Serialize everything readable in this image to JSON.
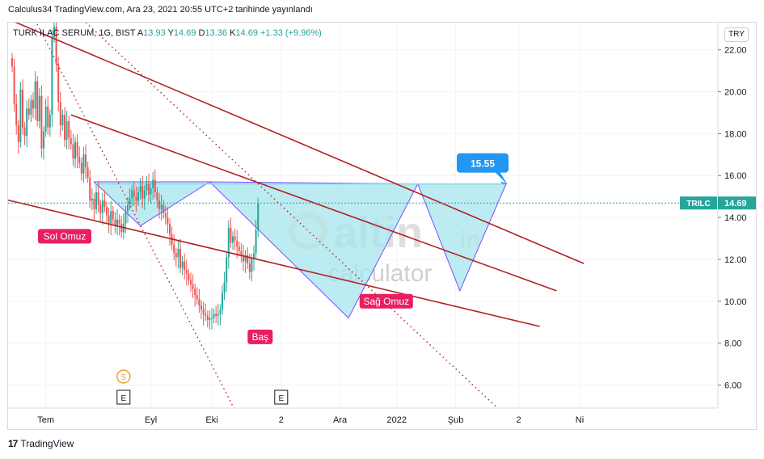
{
  "header": {
    "published": "Calculus34 TradingView.com, Ara 23, 2021 20:55 UTC+2 tarihinde yayınlandı"
  },
  "legend": {
    "name": "TURK ILAC SERUM, 1G, BIST",
    "open_label": "A",
    "open": "13.93",
    "high_label": "Y",
    "high": "14.69",
    "low_label": "D",
    "low": "13.36",
    "close_label": "K",
    "close": "14.69",
    "change": "+1.33 (+9.96%)"
  },
  "currency": "TRY",
  "footer": {
    "brand": "TradingView"
  },
  "watermark": {
    "word1": "altin",
    "word2": "in",
    "word3": "calculator"
  },
  "colors": {
    "up": "#26a69a",
    "down": "#ef5350",
    "trend": "#b22222",
    "pattern_fill": "#a6e4ee",
    "label": "#e91e63",
    "target": "#2196f3"
  },
  "chart_data": {
    "type": "candlestick",
    "y_ticks": [
      "22.00",
      "20.00",
      "18.00",
      "16.00",
      "14.00",
      "12.00",
      "10.00",
      "8.00",
      "6.00"
    ],
    "y_tick_values": [
      22,
      20,
      18,
      16,
      14,
      12,
      10,
      8,
      6
    ],
    "ylim": [
      4.9,
      23.3
    ],
    "x_ticks": [
      "Tem",
      "Eyl",
      "Eki",
      "2",
      "Ara",
      "2022",
      "Şub",
      "2",
      "Ni"
    ],
    "x_tick_values": [
      16,
      66,
      95,
      128,
      156,
      183,
      211,
      241,
      270
    ],
    "last_price_label": "TRILC",
    "last_price": "14.69",
    "target_label": "15.55",
    "pattern_labels": [
      {
        "text": "Sol Omuz",
        "x": 25,
        "y": 13.1
      },
      {
        "text": "Baş",
        "x": 118,
        "y": 8.3
      },
      {
        "text": "Sağ Omuz",
        "x": 178,
        "y": 10.0
      }
    ],
    "event_markers": [
      {
        "text": "S",
        "x": 53
      },
      {
        "text": "E",
        "x": 53
      },
      {
        "text": "E",
        "x": 128
      }
    ],
    "neckline": 15.6,
    "trend_lines": [
      {
        "x1": -5,
        "y1": 23.6,
        "x2": 272,
        "y2": 11.8
      },
      {
        "x1": 28,
        "y1": 18.9,
        "x2": 259,
        "y2": 10.5
      },
      {
        "x1": -5,
        "y1": 14.9,
        "x2": 251,
        "y2": 8.8
      }
    ],
    "dotted_lines": [
      {
        "x1": 10,
        "y1": 23.6,
        "x2": 106,
        "y2": 4.8
      },
      {
        "x1": 32,
        "y1": 23.6,
        "x2": 232,
        "y2": 4.8
      }
    ],
    "patterns": [
      {
        "points": [
          [
            39,
            15.7
          ],
          [
            61,
            13.6
          ],
          [
            94,
            15.7
          ]
        ]
      },
      {
        "points": [
          [
            94,
            15.7
          ],
          [
            160,
            9.2
          ],
          [
            193,
            15.6
          ]
        ]
      },
      {
        "points": [
          [
            193,
            15.6
          ],
          [
            213,
            10.5
          ],
          [
            235,
            15.6
          ]
        ]
      }
    ],
    "series_close": [
      21.2,
      19.4,
      18.4,
      17.6,
      20.1,
      18.3,
      17.9,
      19.2,
      18.9,
      19.6,
      19.2,
      20.5,
      18.6,
      19.8,
      17.3,
      18.1,
      19.3,
      18.3,
      18.9,
      22.6,
      23.1,
      21.3,
      19.5,
      18.4,
      18.9,
      17.7,
      18.6,
      17.8,
      17.5,
      16.8,
      17.6,
      16.9,
      16.6,
      16.1,
      17.0,
      16.4,
      15.9,
      14.8,
      14.9,
      14.4,
      15.2,
      14.6,
      14.2,
      14.8,
      14.5,
      14.1,
      13.7,
      14.3,
      13.9,
      13.6,
      13.9,
      13.7,
      13.3,
      13.7,
      14.3,
      14.6,
      14.9,
      15.3,
      15.0,
      14.8,
      15.2,
      15.5,
      14.9,
      15.3,
      15.6,
      15.1,
      15.4,
      15.8,
      15.2,
      14.8,
      14.4,
      14.6,
      14.2,
      14.0,
      13.7,
      13.2,
      12.7,
      12.3,
      12.1,
      12.5,
      11.6,
      11.9,
      11.5,
      11.3,
      11.0,
      10.8,
      10.6,
      10.3,
      10.1,
      9.8,
      9.6,
      9.4,
      9.3,
      9.1,
      9.2,
      9.2,
      9.4,
      9.3,
      9.4,
      9.6,
      10.4,
      10.9,
      12.1,
      13.5,
      12.8,
      13.1,
      12.9,
      12.6,
      12.4,
      12.2,
      11.9,
      12.2,
      11.8,
      11.4,
      12.0,
      12.3,
      13.4,
      14.69
    ]
  }
}
